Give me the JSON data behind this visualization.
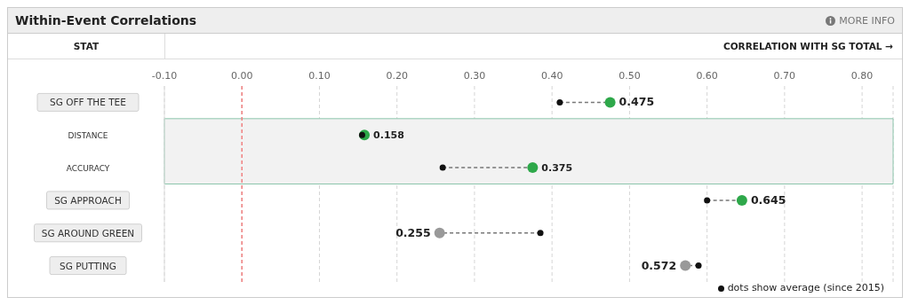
{
  "chart_data": {
    "type": "scatter",
    "orientation": "horizontal",
    "title": "Within-Event Correlations",
    "ylabel": "STAT",
    "xlabel": "CORRELATION WITH SG TOTAL →",
    "annotations": [
      "MORE INFO"
    ],
    "categories": [
      "SG OFF THE TEE",
      "DISTANCE",
      "ACCURACY",
      "SG APPROACH",
      "SG AROUND GREEN",
      "SG PUTTING"
    ],
    "series": [
      {
        "values": [
          0.475,
          0.158,
          0.375,
          0.645,
          0.255,
          0.572
        ],
        "colors": [
          "#2ea84a",
          "#2ea84a",
          "#2ea84a",
          "#2ea84a",
          "#999999",
          "#999999"
        ],
        "value_labels": [
          "0.475",
          "0.158",
          "0.375",
          "0.645",
          "0.255",
          "0.572"
        ]
      },
      {
        "name": "dots show average (since 2015)",
        "color": "#111111",
        "values": [
          0.41,
          0.155,
          0.259,
          0.6,
          0.385,
          0.589
        ]
      }
    ],
    "xlim": [
      -0.1,
      0.84
    ],
    "xticks": [
      {
        "value": -0.1,
        "label": "-0.10"
      },
      {
        "value": 0,
        "label": "0.00"
      },
      {
        "value": 0.1,
        "label": "0.10"
      },
      {
        "value": 0.2,
        "label": "0.20"
      },
      {
        "value": 0.3,
        "label": "0.30"
      },
      {
        "value": 0.4,
        "label": "0.40"
      },
      {
        "value": 0.5,
        "label": "0.50"
      },
      {
        "value": 0.6,
        "label": "0.60"
      },
      {
        "value": 0.7,
        "label": "0.70"
      },
      {
        "value": 0.8,
        "label": "0.80"
      }
    ],
    "ref_lines": [
      {
        "axis": "x",
        "value": 0,
        "color": "#f08080",
        "line_style": "dashed"
      }
    ],
    "bands": [
      {
        "axis": "y",
        "from": "DISTANCE",
        "to": "ACCURACY",
        "color": "#f2f2f2"
      }
    ],
    "grid": "x",
    "legend": "bottom right",
    "marker": "circle",
    "line_style": "dashed"
  }
}
